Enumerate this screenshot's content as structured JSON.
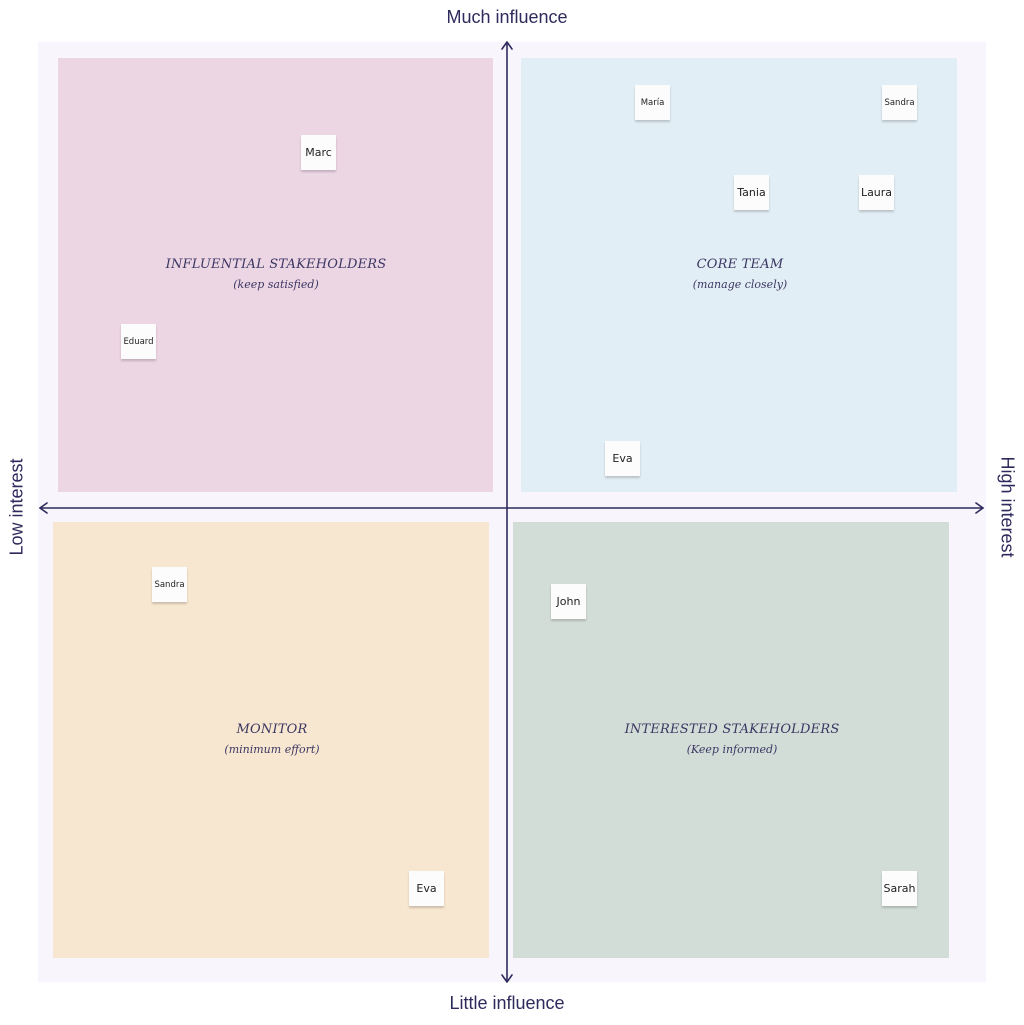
{
  "axes": {
    "top": "Much influence",
    "bottom": "Little influence",
    "left": "Low interest",
    "right": "High interest",
    "color": "#2e2a5c"
  },
  "quadrants": {
    "top_left": {
      "title": "INFLUENTIAL STAKEHOLDERS",
      "subtitle": "(keep satisfied)",
      "color": "#edd6e4"
    },
    "top_right": {
      "title": "CORE TEAM",
      "subtitle": "(manage closely)",
      "color": "#e2eef5"
    },
    "bottom_left": {
      "title": "MONITOR",
      "subtitle": "(minimum effort)",
      "color": "#f8e7d0"
    },
    "bottom_right": {
      "title": "INTERESTED STAKEHOLDERS",
      "subtitle": "(Keep informed)",
      "color": "#d3ddd7"
    }
  },
  "stakeholders": [
    {
      "name": "Marc"
    },
    {
      "name": "Eduard"
    },
    {
      "name": "María"
    },
    {
      "name": "Sandra"
    },
    {
      "name": "Tania"
    },
    {
      "name": "Laura"
    },
    {
      "name": "Eva"
    },
    {
      "name": "Sandra"
    },
    {
      "name": "John"
    },
    {
      "name": "Eva"
    },
    {
      "name": "Sarah"
    }
  ]
}
